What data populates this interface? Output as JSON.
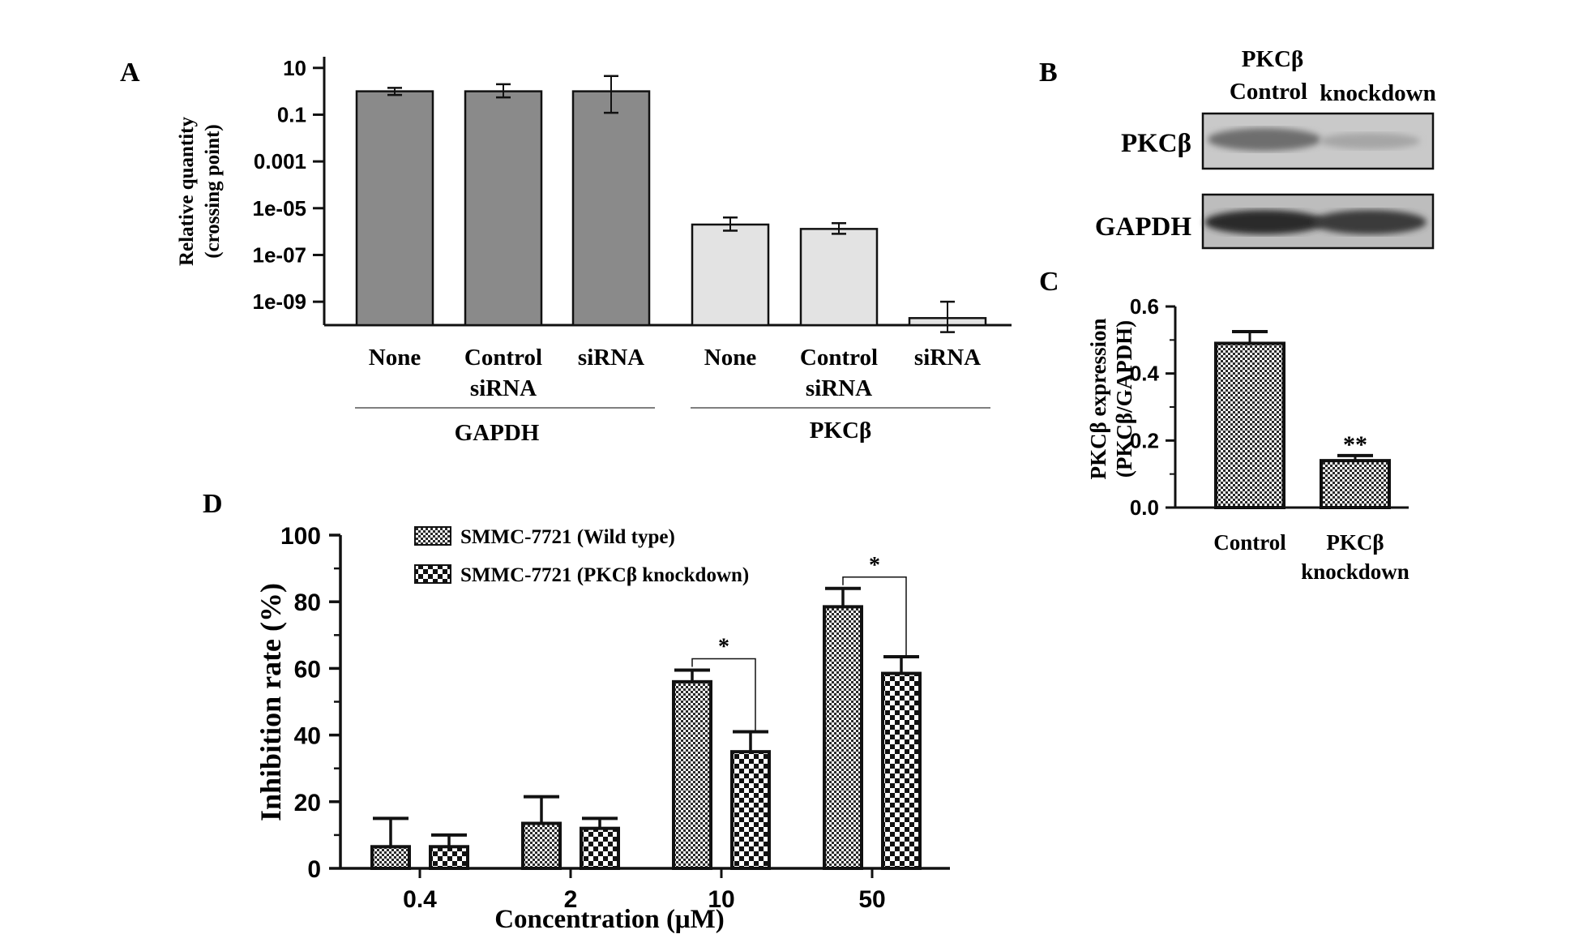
{
  "chart_data": [
    {
      "panel": "A",
      "type": "bar",
      "yscale": "log",
      "ylabel_lines": [
        "Relative quantity",
        "(crossing point)"
      ],
      "yticks": [
        "10",
        "0.1",
        "0.001",
        "1e-05",
        "1e-07",
        "1e-09"
      ],
      "ytick_values": [
        10,
        0.1,
        0.001,
        1e-05,
        1e-07,
        1e-09
      ],
      "ylim": [
        1e-10,
        30
      ],
      "groups": [
        {
          "label": "GAPDH",
          "categories": [
            [
              "None"
            ],
            [
              "Control",
              "siRNA"
            ],
            [
              "siRNA"
            ]
          ],
          "values": [
            1,
            1,
            1
          ],
          "err_low": [
            0.7,
            0.55,
            0.12
          ],
          "err_high": [
            1.4,
            2.0,
            4.5
          ],
          "color": "#8a8a8a"
        },
        {
          "label": "PKCβ",
          "categories": [
            [
              "None"
            ],
            [
              "Control",
              "siRNA"
            ],
            [
              "siRNA"
            ]
          ],
          "values": [
            2e-06,
            1.3e-06,
            2e-10
          ],
          "err_low": [
            1.1e-06,
            8e-07,
            5e-11
          ],
          "err_high": [
            4e-06,
            2.3e-06,
            1e-09
          ],
          "color": "#e3e3e3"
        }
      ]
    },
    {
      "panel": "C",
      "type": "bar",
      "ylabel_lines": [
        "PKCβ  expression",
        "(PKCβ/GAPDH)"
      ],
      "yticks": [
        "0.0",
        "0.2",
        "0.4",
        "0.6"
      ],
      "ylim": [
        0,
        0.6
      ],
      "categories": [
        [
          "Control"
        ],
        [
          "PKCβ",
          "knockdown"
        ]
      ],
      "values": [
        0.49,
        0.14
      ],
      "errors": [
        0.035,
        0.015
      ],
      "annotations": [
        "",
        "**"
      ]
    },
    {
      "panel": "D",
      "type": "bar",
      "xlabel": "Concentration (μM)",
      "ylabel": "Inhibition rate (%)",
      "yticks": [
        "0",
        "20",
        "40",
        "60",
        "80",
        "100"
      ],
      "ylim": [
        0,
        100
      ],
      "categories": [
        "0.4",
        "2",
        "10",
        "50"
      ],
      "series": [
        {
          "name": "SMMC-7721 (Wild type)",
          "values": [
            6.5,
            13.5,
            56,
            78.5
          ],
          "errors": [
            8.5,
            8,
            3.5,
            5.5
          ]
        },
        {
          "name": "SMMC-7721 (PKCβ knockdown)",
          "values": [
            6.5,
            12,
            35,
            58.5
          ],
          "errors": [
            3.5,
            3,
            6,
            5
          ]
        }
      ],
      "significance": [
        "",
        "",
        "*",
        "*"
      ]
    }
  ],
  "panel_labels": {
    "a": "A",
    "b": "B",
    "c": "C",
    "d": "D"
  },
  "western_blot": {
    "columns": [
      "Control"
    ],
    "column2_lines": [
      "PKCβ",
      "knockdown"
    ],
    "rows": [
      "PKCβ",
      "GAPDH"
    ]
  }
}
